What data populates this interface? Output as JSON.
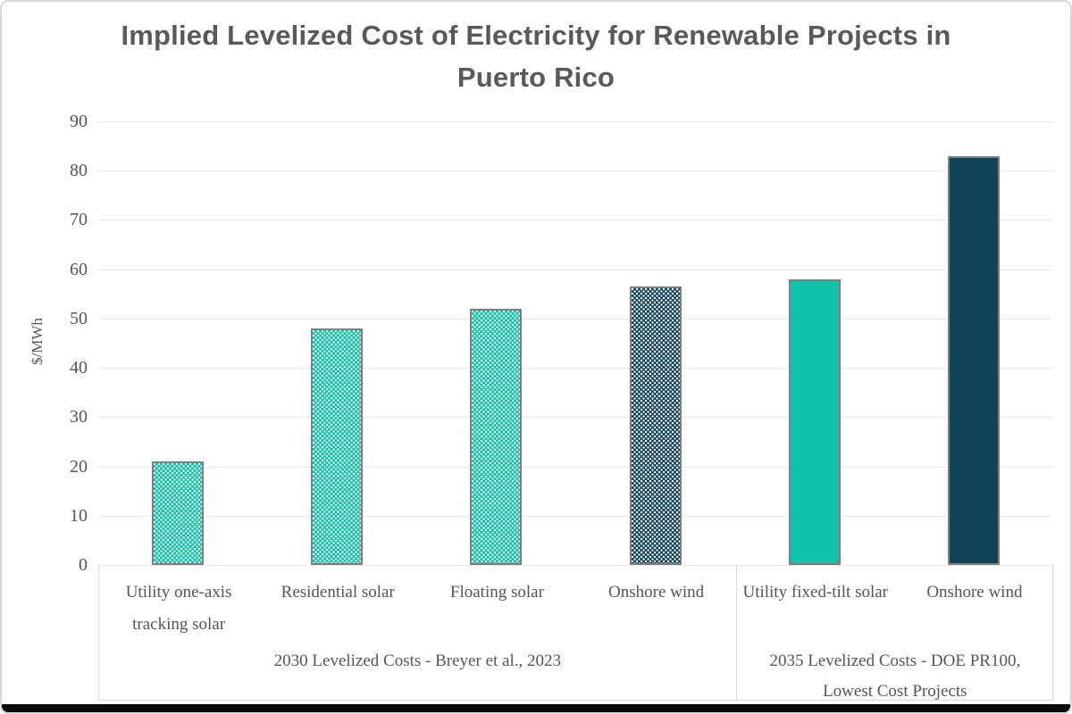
{
  "chart_data": {
    "type": "bar",
    "title": "Implied Levelized Cost of Electricity for Renewable Projects in Puerto Rico",
    "ylabel": "$/MWh",
    "ylim": [
      0,
      90
    ],
    "ytick_step": 10,
    "grid": "horizontal",
    "legend": "none",
    "bars": [
      {
        "label": "Utility one-axis tracking solar",
        "value": 21,
        "color": "teal",
        "pattern": "dots"
      },
      {
        "label": "Residential solar",
        "value": 48,
        "color": "teal",
        "pattern": "dots"
      },
      {
        "label": "Floating solar",
        "value": 52,
        "color": "teal",
        "pattern": "dots"
      },
      {
        "label": "Onshore wind",
        "value": 56.5,
        "color": "navy",
        "pattern": "dots"
      },
      {
        "label": "Utility fixed-tilt solar",
        "value": 58,
        "color": "teal",
        "pattern": "solid"
      },
      {
        "label": "Onshore wind",
        "value": 83,
        "color": "navy",
        "pattern": "solid"
      }
    ],
    "groups": [
      {
        "label": "2030 Levelized Costs - Breyer et al., 2023",
        "span": [
          0,
          3
        ]
      },
      {
        "label": "2035 Levelized Costs - DOE PR100, Lowest Cost Projects",
        "span": [
          4,
          5
        ]
      }
    ],
    "colors": {
      "teal": "#0ec3a8",
      "navy": "#0f4459",
      "bar_border": "#7f7f7f",
      "gridline": "#e8e8e8",
      "axis_text": "#555555",
      "title_text": "#58595b",
      "box_border": "#d9d9d9"
    }
  }
}
